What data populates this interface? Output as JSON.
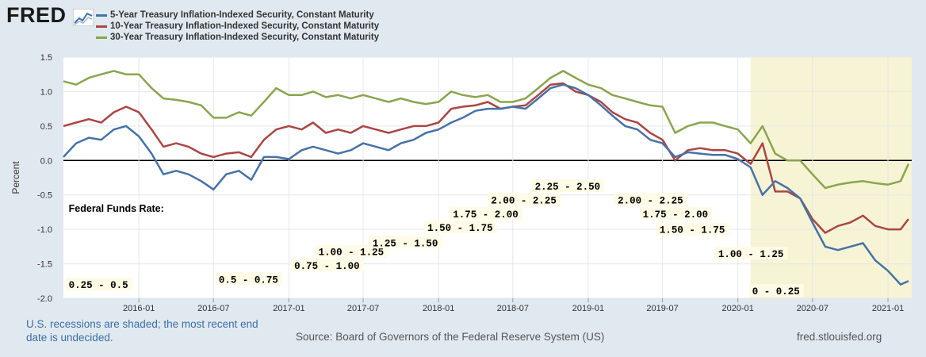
{
  "logo": {
    "text": "FRED"
  },
  "chart_data": {
    "type": "line",
    "title": "",
    "xlabel": "",
    "ylabel": "Percent",
    "ylim": [
      -2.0,
      1.5
    ],
    "y_ticks": [
      "1.5",
      "1.0",
      "0.5",
      "0.0",
      "-0.5",
      "-1.0",
      "-1.5",
      "-2.0"
    ],
    "x_ticks": [
      "2016-01",
      "2016-07",
      "2017-01",
      "2017-07",
      "2018-01",
      "2018-07",
      "2019-01",
      "2019-07",
      "2020-01",
      "2020-07",
      "2021-01"
    ],
    "x_range": [
      "2015-07-01",
      "2021-02-28"
    ],
    "grid": true,
    "legend_position": "top-left",
    "recession_shading": {
      "start": "2020-02",
      "end": "2021-02",
      "color": "#f6f4d5"
    },
    "series": [
      {
        "name": "5-Year Treasury Inflation-Indexed Security, Constant Maturity",
        "color": "#4572a7",
        "points": [
          [
            "2015-07-01",
            0.05
          ],
          [
            "2015-08-01",
            0.25
          ],
          [
            "2015-09-01",
            0.33
          ],
          [
            "2015-10-01",
            0.3
          ],
          [
            "2015-11-01",
            0.45
          ],
          [
            "2015-12-01",
            0.5
          ],
          [
            "2016-01-01",
            0.35
          ],
          [
            "2016-02-01",
            0.1
          ],
          [
            "2016-03-01",
            -0.2
          ],
          [
            "2016-04-01",
            -0.15
          ],
          [
            "2016-05-01",
            -0.2
          ],
          [
            "2016-06-01",
            -0.3
          ],
          [
            "2016-07-01",
            -0.42
          ],
          [
            "2016-08-01",
            -0.2
          ],
          [
            "2016-09-01",
            -0.15
          ],
          [
            "2016-10-01",
            -0.28
          ],
          [
            "2016-11-01",
            0.05
          ],
          [
            "2016-12-01",
            0.05
          ],
          [
            "2017-01-01",
            0.02
          ],
          [
            "2017-02-01",
            0.15
          ],
          [
            "2017-03-01",
            0.2
          ],
          [
            "2017-04-01",
            0.15
          ],
          [
            "2017-05-01",
            0.1
          ],
          [
            "2017-06-01",
            0.15
          ],
          [
            "2017-07-01",
            0.25
          ],
          [
            "2017-08-01",
            0.2
          ],
          [
            "2017-09-01",
            0.15
          ],
          [
            "2017-10-01",
            0.25
          ],
          [
            "2017-11-01",
            0.3
          ],
          [
            "2017-12-01",
            0.4
          ],
          [
            "2018-01-01",
            0.45
          ],
          [
            "2018-02-01",
            0.55
          ],
          [
            "2018-03-01",
            0.62
          ],
          [
            "2018-04-01",
            0.72
          ],
          [
            "2018-05-01",
            0.75
          ],
          [
            "2018-06-01",
            0.75
          ],
          [
            "2018-07-01",
            0.78
          ],
          [
            "2018-08-01",
            0.75
          ],
          [
            "2018-09-01",
            0.9
          ],
          [
            "2018-10-01",
            1.05
          ],
          [
            "2018-11-01",
            1.1
          ],
          [
            "2018-12-01",
            1.05
          ],
          [
            "2019-01-01",
            0.95
          ],
          [
            "2019-02-01",
            0.8
          ],
          [
            "2019-03-01",
            0.65
          ],
          [
            "2019-04-01",
            0.5
          ],
          [
            "2019-05-01",
            0.45
          ],
          [
            "2019-06-01",
            0.3
          ],
          [
            "2019-07-01",
            0.25
          ],
          [
            "2019-08-01",
            0.05
          ],
          [
            "2019-09-01",
            0.12
          ],
          [
            "2019-10-01",
            0.1
          ],
          [
            "2019-11-01",
            0.08
          ],
          [
            "2019-12-01",
            0.08
          ],
          [
            "2020-01-01",
            0.02
          ],
          [
            "2020-02-01",
            -0.1
          ],
          [
            "2020-03-01",
            -0.5
          ],
          [
            "2020-04-01",
            -0.3
          ],
          [
            "2020-05-01",
            -0.4
          ],
          [
            "2020-06-01",
            -0.55
          ],
          [
            "2020-07-01",
            -0.9
          ],
          [
            "2020-08-01",
            -1.25
          ],
          [
            "2020-09-01",
            -1.3
          ],
          [
            "2020-10-01",
            -1.25
          ],
          [
            "2020-11-01",
            -1.2
          ],
          [
            "2020-12-01",
            -1.45
          ],
          [
            "2021-01-01",
            -1.6
          ],
          [
            "2021-02-01",
            -1.8
          ],
          [
            "2021-02-20",
            -1.75
          ]
        ]
      },
      {
        "name": "10-Year Treasury Inflation-Indexed Security, Constant Maturity",
        "color": "#aa4643",
        "points": [
          [
            "2015-07-01",
            0.5
          ],
          [
            "2015-08-01",
            0.55
          ],
          [
            "2015-09-01",
            0.6
          ],
          [
            "2015-10-01",
            0.55
          ],
          [
            "2015-11-01",
            0.7
          ],
          [
            "2015-12-01",
            0.78
          ],
          [
            "2016-01-01",
            0.7
          ],
          [
            "2016-02-01",
            0.45
          ],
          [
            "2016-03-01",
            0.2
          ],
          [
            "2016-04-01",
            0.25
          ],
          [
            "2016-05-01",
            0.2
          ],
          [
            "2016-06-01",
            0.1
          ],
          [
            "2016-07-01",
            0.05
          ],
          [
            "2016-08-01",
            0.1
          ],
          [
            "2016-09-01",
            0.12
          ],
          [
            "2016-10-01",
            0.05
          ],
          [
            "2016-11-01",
            0.3
          ],
          [
            "2016-12-01",
            0.45
          ],
          [
            "2017-01-01",
            0.5
          ],
          [
            "2017-02-01",
            0.45
          ],
          [
            "2017-03-01",
            0.55
          ],
          [
            "2017-04-01",
            0.4
          ],
          [
            "2017-05-01",
            0.45
          ],
          [
            "2017-06-01",
            0.4
          ],
          [
            "2017-07-01",
            0.5
          ],
          [
            "2017-08-01",
            0.45
          ],
          [
            "2017-09-01",
            0.4
          ],
          [
            "2017-10-01",
            0.45
          ],
          [
            "2017-11-01",
            0.5
          ],
          [
            "2017-12-01",
            0.5
          ],
          [
            "2018-01-01",
            0.55
          ],
          [
            "2018-02-01",
            0.75
          ],
          [
            "2018-03-01",
            0.78
          ],
          [
            "2018-04-01",
            0.8
          ],
          [
            "2018-05-01",
            0.85
          ],
          [
            "2018-06-01",
            0.75
          ],
          [
            "2018-07-01",
            0.78
          ],
          [
            "2018-08-01",
            0.8
          ],
          [
            "2018-09-01",
            0.95
          ],
          [
            "2018-10-01",
            1.1
          ],
          [
            "2018-11-01",
            1.12
          ],
          [
            "2018-12-01",
            1.0
          ],
          [
            "2019-01-01",
            0.95
          ],
          [
            "2019-02-01",
            0.85
          ],
          [
            "2019-03-01",
            0.7
          ],
          [
            "2019-04-01",
            0.6
          ],
          [
            "2019-05-01",
            0.55
          ],
          [
            "2019-06-01",
            0.4
          ],
          [
            "2019-07-01",
            0.3
          ],
          [
            "2019-08-01",
            0.0
          ],
          [
            "2019-09-01",
            0.15
          ],
          [
            "2019-10-01",
            0.18
          ],
          [
            "2019-11-01",
            0.15
          ],
          [
            "2019-12-01",
            0.15
          ],
          [
            "2020-01-01",
            0.1
          ],
          [
            "2020-02-01",
            -0.05
          ],
          [
            "2020-03-01",
            0.25
          ],
          [
            "2020-04-01",
            -0.45
          ],
          [
            "2020-05-01",
            -0.45
          ],
          [
            "2020-06-01",
            -0.55
          ],
          [
            "2020-07-01",
            -0.85
          ],
          [
            "2020-08-01",
            -1.05
          ],
          [
            "2020-09-01",
            -0.95
          ],
          [
            "2020-10-01",
            -0.9
          ],
          [
            "2020-11-01",
            -0.8
          ],
          [
            "2020-12-01",
            -0.95
          ],
          [
            "2021-01-01",
            -1.0
          ],
          [
            "2021-02-01",
            -1.0
          ],
          [
            "2021-02-20",
            -0.85
          ]
        ]
      },
      {
        "name": "30-Year Treasury Inflation-Indexed Security, Constant Maturity",
        "color": "#89a54e",
        "points": [
          [
            "2015-07-01",
            1.15
          ],
          [
            "2015-08-01",
            1.1
          ],
          [
            "2015-09-01",
            1.2
          ],
          [
            "2015-10-01",
            1.25
          ],
          [
            "2015-11-01",
            1.3
          ],
          [
            "2015-12-01",
            1.25
          ],
          [
            "2016-01-01",
            1.25
          ],
          [
            "2016-02-01",
            1.05
          ],
          [
            "2016-03-01",
            0.9
          ],
          [
            "2016-04-01",
            0.88
          ],
          [
            "2016-05-01",
            0.85
          ],
          [
            "2016-06-01",
            0.8
          ],
          [
            "2016-07-01",
            0.62
          ],
          [
            "2016-08-01",
            0.62
          ],
          [
            "2016-09-01",
            0.7
          ],
          [
            "2016-10-01",
            0.65
          ],
          [
            "2016-11-01",
            0.85
          ],
          [
            "2016-12-01",
            1.05
          ],
          [
            "2017-01-01",
            0.95
          ],
          [
            "2017-02-01",
            0.95
          ],
          [
            "2017-03-01",
            1.0
          ],
          [
            "2017-04-01",
            0.92
          ],
          [
            "2017-05-01",
            0.95
          ],
          [
            "2017-06-01",
            0.9
          ],
          [
            "2017-07-01",
            0.95
          ],
          [
            "2017-08-01",
            0.9
          ],
          [
            "2017-09-01",
            0.85
          ],
          [
            "2017-10-01",
            0.9
          ],
          [
            "2017-11-01",
            0.85
          ],
          [
            "2017-12-01",
            0.82
          ],
          [
            "2018-01-01",
            0.85
          ],
          [
            "2018-02-01",
            1.0
          ],
          [
            "2018-03-01",
            0.95
          ],
          [
            "2018-04-01",
            0.92
          ],
          [
            "2018-05-01",
            0.95
          ],
          [
            "2018-06-01",
            0.85
          ],
          [
            "2018-07-01",
            0.85
          ],
          [
            "2018-08-01",
            0.9
          ],
          [
            "2018-09-01",
            1.05
          ],
          [
            "2018-10-01",
            1.2
          ],
          [
            "2018-11-01",
            1.3
          ],
          [
            "2018-12-01",
            1.2
          ],
          [
            "2019-01-01",
            1.1
          ],
          [
            "2019-02-01",
            1.05
          ],
          [
            "2019-03-01",
            0.95
          ],
          [
            "2019-04-01",
            0.9
          ],
          [
            "2019-05-01",
            0.85
          ],
          [
            "2019-06-01",
            0.8
          ],
          [
            "2019-07-01",
            0.78
          ],
          [
            "2019-08-01",
            0.4
          ],
          [
            "2019-09-01",
            0.5
          ],
          [
            "2019-10-01",
            0.55
          ],
          [
            "2019-11-01",
            0.55
          ],
          [
            "2019-12-01",
            0.5
          ],
          [
            "2020-01-01",
            0.45
          ],
          [
            "2020-02-01",
            0.25
          ],
          [
            "2020-03-01",
            0.5
          ],
          [
            "2020-04-01",
            0.1
          ],
          [
            "2020-05-01",
            0.0
          ],
          [
            "2020-06-01",
            0.0
          ],
          [
            "2020-07-01",
            -0.2
          ],
          [
            "2020-08-01",
            -0.4
          ],
          [
            "2020-09-01",
            -0.35
          ],
          [
            "2020-10-01",
            -0.32
          ],
          [
            "2020-11-01",
            -0.3
          ],
          [
            "2020-12-01",
            -0.33
          ],
          [
            "2021-01-01",
            -0.35
          ],
          [
            "2021-02-01",
            -0.3
          ],
          [
            "2021-02-20",
            -0.05
          ]
        ]
      }
    ],
    "annotations": [
      {
        "text": "Federal Funds Rate:",
        "date": "2015-07-10",
        "y": -0.72,
        "plain": true
      },
      {
        "text": "0.25 - 0.5",
        "date": "2015-07-10",
        "y": -1.83
      },
      {
        "text": "0.5 - 0.75",
        "date": "2016-07-10",
        "y": -1.75
      },
      {
        "text": "0.75 - 1.00",
        "date": "2017-01-10",
        "y": -1.55
      },
      {
        "text": "1.00 - 1.25",
        "date": "2017-03-10",
        "y": -1.35
      },
      {
        "text": "1.25 - 1.50",
        "date": "2017-07-20",
        "y": -1.22
      },
      {
        "text": "1.50 - 1.75",
        "date": "2017-12-01",
        "y": -1.0
      },
      {
        "text": "1.75 - 2.00",
        "date": "2018-02-01",
        "y": -0.8
      },
      {
        "text": "2.00 - 2.25",
        "date": "2018-05-05",
        "y": -0.6
      },
      {
        "text": "2.25 - 2.50",
        "date": "2018-08-20",
        "y": -0.4
      },
      {
        "text": "2.00 - 2.25",
        "date": "2019-03-10",
        "y": -0.6
      },
      {
        "text": "1.75 - 2.00",
        "date": "2019-05-10",
        "y": -0.8
      },
      {
        "text": "1.50 - 1.75",
        "date": "2019-06-20",
        "y": -1.03
      },
      {
        "text": "1.00 - 1.25",
        "date": "2019-11-10",
        "y": -1.38
      },
      {
        "text": "0 - 0.25",
        "date": "2020-02-01",
        "y": -1.92
      }
    ]
  },
  "footer": {
    "recession_note": "U.S. recessions are shaded; the most recent end date is undecided.",
    "source": "Source: Board of Governors of the Federal Reserve System (US)",
    "site": "fred.stlouisfed.org"
  }
}
